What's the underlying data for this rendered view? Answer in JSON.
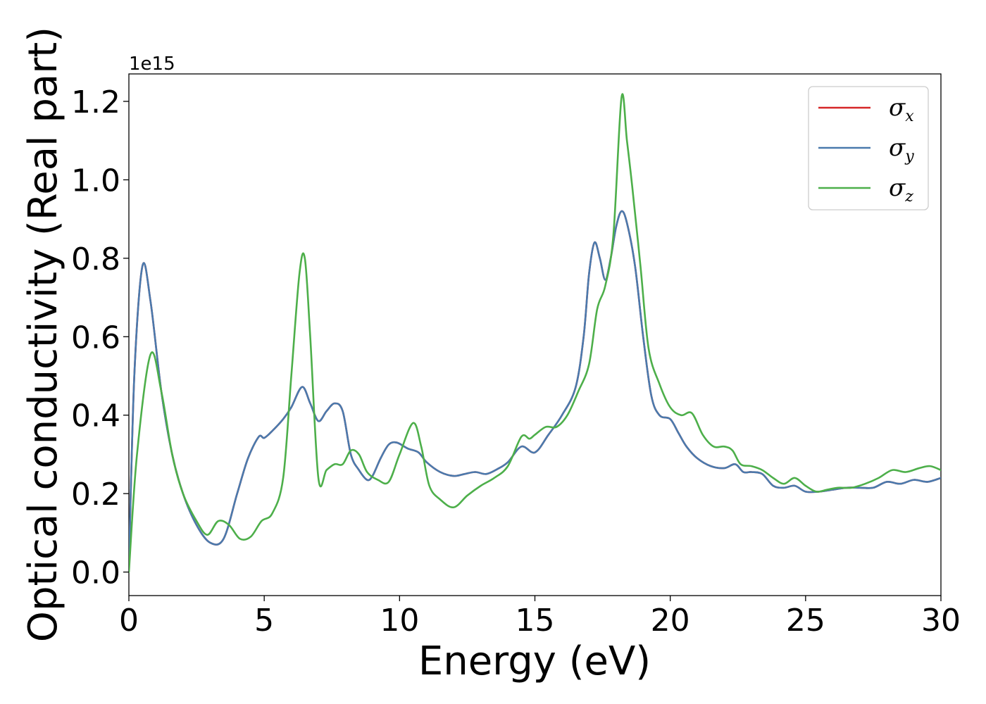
{
  "chart_data": {
    "type": "line",
    "title": "",
    "xlabel": "Energy (eV)",
    "ylabel": "Optical conductivity (Real part)",
    "y_offset_label": "1e15",
    "y_scale": 1000000000000000.0,
    "xlim": [
      0,
      30
    ],
    "ylim": [
      -0.06,
      1.27
    ],
    "x_ticks": [
      0,
      5,
      10,
      15,
      20,
      25,
      30
    ],
    "x_tick_labels": [
      "0",
      "5",
      "10",
      "15",
      "20",
      "25",
      "30"
    ],
    "y_ticks": [
      0.0,
      0.2,
      0.4,
      0.6,
      0.8,
      1.0,
      1.2
    ],
    "y_tick_labels": [
      "0.0",
      "0.2",
      "0.4",
      "0.6",
      "0.8",
      "1.0",
      "1.2"
    ],
    "grid": false,
    "legend_position": "top-right",
    "series": [
      {
        "name": "σx",
        "symbol": "σ",
        "subscript": "x",
        "color": "#d62728",
        "x": [
          0,
          0.2,
          0.5,
          0.8,
          1.2,
          1.6,
          2.0,
          2.5,
          3.0,
          3.5,
          4.0,
          4.4,
          4.8,
          5.0,
          5.3,
          5.7,
          6.0,
          6.4,
          6.7,
          7.0,
          7.3,
          7.6,
          7.9,
          8.2,
          8.5,
          8.8,
          9.0,
          9.3,
          9.6,
          9.9,
          10.3,
          10.7,
          11.0,
          11.5,
          12.0,
          12.4,
          12.8,
          13.2,
          13.6,
          14.0,
          14.5,
          15.0,
          15.5,
          16.0,
          16.5,
          16.8,
          17.0,
          17.2,
          17.4,
          17.6,
          17.8,
          18.0,
          18.2,
          18.4,
          18.7,
          19.0,
          19.3,
          19.6,
          20.0,
          20.3,
          20.6,
          21.0,
          21.5,
          22.0,
          22.4,
          22.7,
          23.0,
          23.4,
          23.8,
          24.2,
          24.6,
          25.0,
          25.5,
          26.0,
          26.5,
          27.0,
          27.5,
          28.0,
          28.5,
          29.0,
          29.5,
          30.0
        ],
        "y": [
          0.01,
          0.5,
          0.78,
          0.69,
          0.46,
          0.3,
          0.2,
          0.12,
          0.075,
          0.085,
          0.2,
          0.29,
          0.345,
          0.342,
          0.36,
          0.39,
          0.42,
          0.472,
          0.43,
          0.385,
          0.41,
          0.43,
          0.41,
          0.3,
          0.26,
          0.235,
          0.245,
          0.29,
          0.325,
          0.33,
          0.315,
          0.305,
          0.28,
          0.255,
          0.245,
          0.25,
          0.255,
          0.25,
          0.262,
          0.28,
          0.32,
          0.305,
          0.35,
          0.4,
          0.47,
          0.6,
          0.76,
          0.84,
          0.8,
          0.745,
          0.8,
          0.88,
          0.92,
          0.89,
          0.78,
          0.6,
          0.45,
          0.4,
          0.39,
          0.355,
          0.32,
          0.29,
          0.27,
          0.265,
          0.275,
          0.255,
          0.255,
          0.25,
          0.22,
          0.215,
          0.22,
          0.205,
          0.205,
          0.21,
          0.215,
          0.215,
          0.215,
          0.23,
          0.225,
          0.235,
          0.23,
          0.24
        ]
      },
      {
        "name": "σy",
        "symbol": "σ",
        "subscript": "y",
        "color": "#4a7aad",
        "x": [
          0,
          0.2,
          0.5,
          0.8,
          1.2,
          1.6,
          2.0,
          2.5,
          3.0,
          3.5,
          4.0,
          4.4,
          4.8,
          5.0,
          5.3,
          5.7,
          6.0,
          6.4,
          6.7,
          7.0,
          7.3,
          7.6,
          7.9,
          8.2,
          8.5,
          8.8,
          9.0,
          9.3,
          9.6,
          9.9,
          10.3,
          10.7,
          11.0,
          11.5,
          12.0,
          12.4,
          12.8,
          13.2,
          13.6,
          14.0,
          14.5,
          15.0,
          15.5,
          16.0,
          16.5,
          16.8,
          17.0,
          17.2,
          17.4,
          17.6,
          17.8,
          18.0,
          18.2,
          18.4,
          18.7,
          19.0,
          19.3,
          19.6,
          20.0,
          20.3,
          20.6,
          21.0,
          21.5,
          22.0,
          22.4,
          22.7,
          23.0,
          23.4,
          23.8,
          24.2,
          24.6,
          25.0,
          25.5,
          26.0,
          26.5,
          27.0,
          27.5,
          28.0,
          28.5,
          29.0,
          29.5,
          30.0
        ],
        "y": [
          0.01,
          0.5,
          0.78,
          0.69,
          0.46,
          0.3,
          0.2,
          0.12,
          0.075,
          0.085,
          0.2,
          0.29,
          0.345,
          0.342,
          0.36,
          0.39,
          0.42,
          0.472,
          0.43,
          0.385,
          0.41,
          0.43,
          0.41,
          0.3,
          0.26,
          0.235,
          0.245,
          0.29,
          0.325,
          0.33,
          0.315,
          0.305,
          0.28,
          0.255,
          0.245,
          0.25,
          0.255,
          0.25,
          0.262,
          0.28,
          0.32,
          0.305,
          0.35,
          0.4,
          0.47,
          0.6,
          0.76,
          0.84,
          0.8,
          0.745,
          0.8,
          0.88,
          0.92,
          0.89,
          0.78,
          0.6,
          0.45,
          0.4,
          0.39,
          0.355,
          0.32,
          0.29,
          0.27,
          0.265,
          0.275,
          0.255,
          0.255,
          0.25,
          0.22,
          0.215,
          0.22,
          0.205,
          0.205,
          0.21,
          0.215,
          0.215,
          0.215,
          0.23,
          0.225,
          0.235,
          0.23,
          0.24
        ]
      },
      {
        "name": "σz",
        "symbol": "σ",
        "subscript": "z",
        "color": "#4daf4a",
        "x": [
          0,
          0.3,
          0.8,
          1.2,
          1.6,
          2.0,
          2.5,
          2.9,
          3.3,
          3.7,
          4.1,
          4.5,
          4.9,
          5.3,
          5.7,
          6.0,
          6.3,
          6.5,
          6.7,
          7.0,
          7.3,
          7.6,
          7.9,
          8.2,
          8.5,
          8.8,
          9.2,
          9.6,
          10.0,
          10.5,
          10.8,
          11.1,
          11.5,
          12.0,
          12.5,
          13.0,
          13.5,
          14.0,
          14.5,
          14.8,
          15.0,
          15.4,
          15.8,
          16.2,
          16.6,
          17.0,
          17.3,
          17.6,
          17.9,
          18.2,
          18.4,
          18.6,
          18.9,
          19.2,
          19.6,
          20.0,
          20.4,
          20.8,
          21.2,
          21.6,
          22.0,
          22.3,
          22.6,
          23.0,
          23.4,
          23.8,
          24.2,
          24.6,
          25.0,
          25.4,
          25.8,
          26.2,
          26.7,
          27.2,
          27.7,
          28.2,
          28.7,
          29.2,
          29.6,
          30.0
        ],
        "y": [
          0.0,
          0.3,
          0.555,
          0.46,
          0.3,
          0.2,
          0.13,
          0.095,
          0.13,
          0.12,
          0.085,
          0.09,
          0.13,
          0.15,
          0.24,
          0.5,
          0.76,
          0.8,
          0.6,
          0.24,
          0.26,
          0.275,
          0.275,
          0.31,
          0.3,
          0.255,
          0.235,
          0.23,
          0.3,
          0.38,
          0.32,
          0.22,
          0.185,
          0.165,
          0.195,
          0.22,
          0.24,
          0.27,
          0.345,
          0.34,
          0.35,
          0.37,
          0.37,
          0.4,
          0.46,
          0.53,
          0.67,
          0.73,
          0.86,
          1.21,
          1.1,
          0.98,
          0.78,
          0.57,
          0.48,
          0.42,
          0.4,
          0.405,
          0.35,
          0.32,
          0.32,
          0.31,
          0.275,
          0.27,
          0.26,
          0.24,
          0.225,
          0.24,
          0.22,
          0.205,
          0.21,
          0.215,
          0.215,
          0.225,
          0.24,
          0.26,
          0.255,
          0.265,
          0.27,
          0.26
        ]
      }
    ]
  }
}
